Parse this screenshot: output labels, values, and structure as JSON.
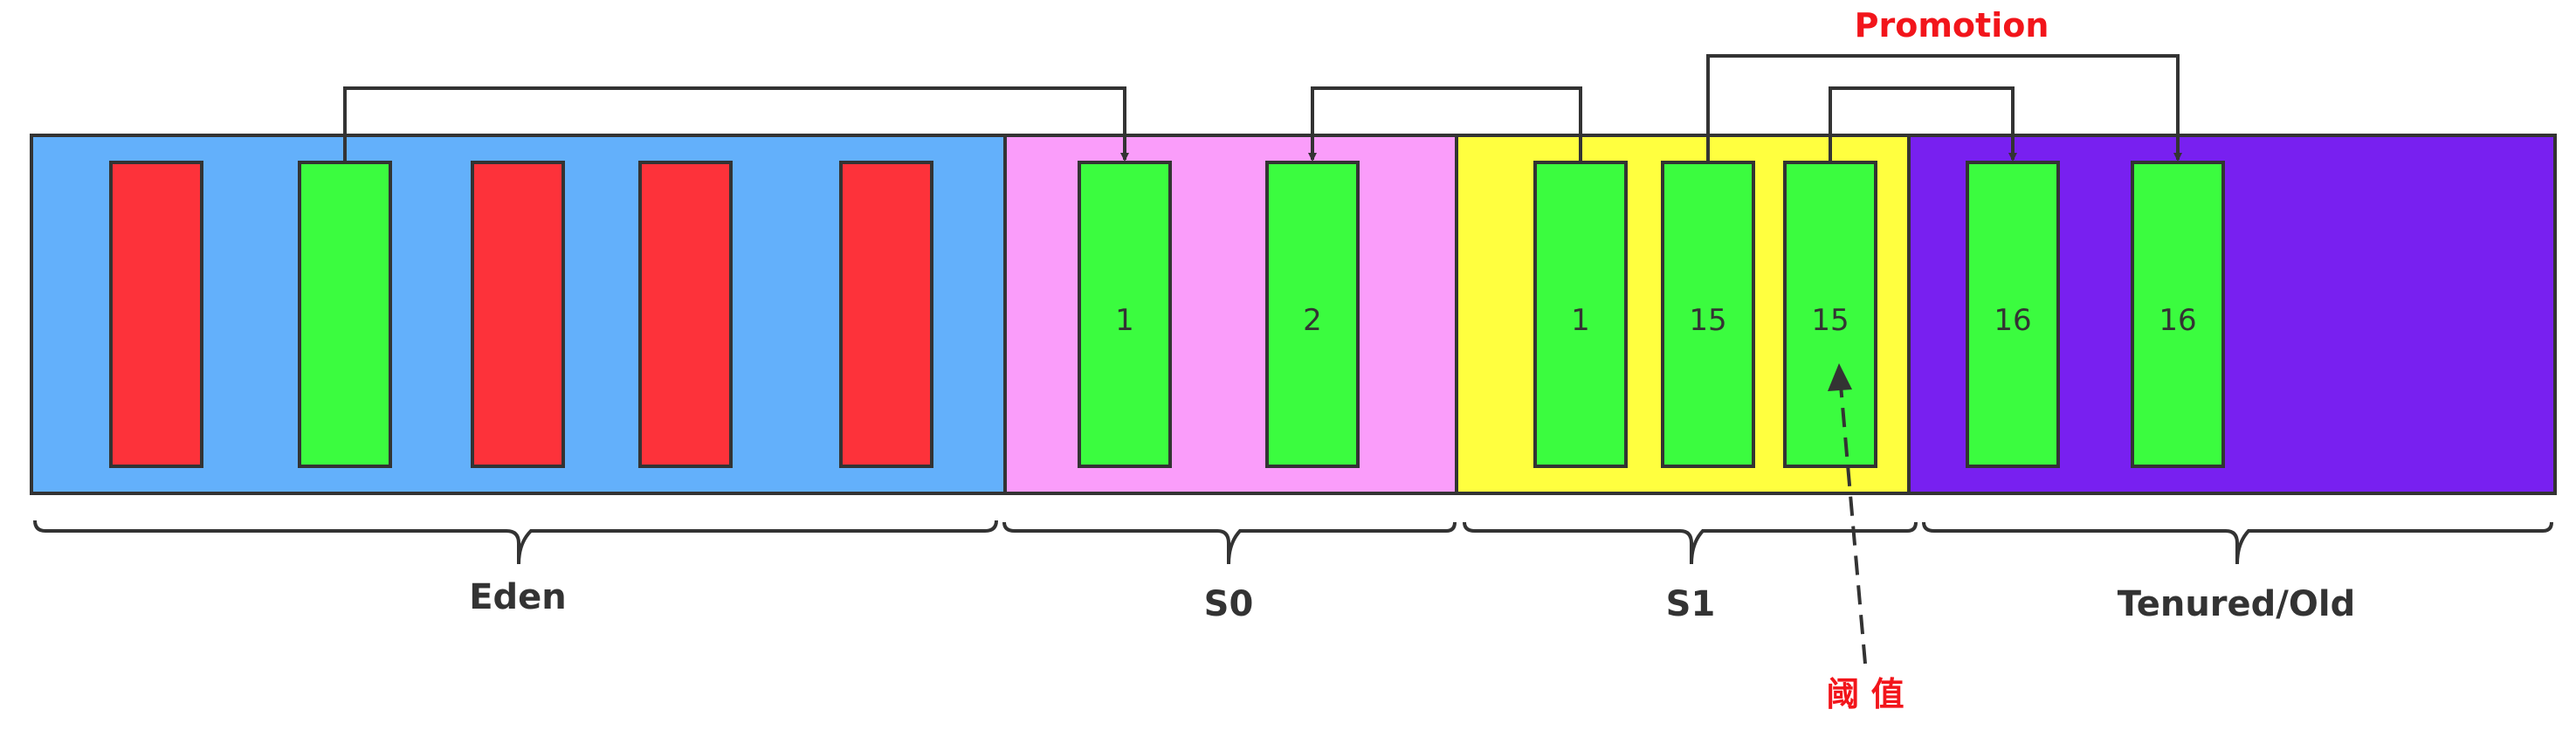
{
  "regions": [
    {
      "id": "eden",
      "label": "Eden",
      "color": "#63B0FB"
    },
    {
      "id": "s0",
      "label": "S0",
      "color": "#FA9DFA"
    },
    {
      "id": "s1",
      "label": "S1",
      "color": "#FFFF3F"
    },
    {
      "id": "tenured",
      "label": "Tenured/Old",
      "color": "#7820F0"
    }
  ],
  "objects": {
    "eden": [
      {
        "state": "garbage",
        "label": ""
      },
      {
        "state": "live",
        "label": ""
      },
      {
        "state": "garbage",
        "label": ""
      },
      {
        "state": "garbage",
        "label": ""
      },
      {
        "state": "garbage",
        "label": ""
      }
    ],
    "s0": [
      {
        "state": "live",
        "label": "1"
      },
      {
        "state": "live",
        "label": "2"
      }
    ],
    "s1": [
      {
        "state": "live",
        "label": "1"
      },
      {
        "state": "live",
        "label": "15"
      },
      {
        "state": "live",
        "label": "15"
      }
    ],
    "tenured": [
      {
        "state": "live",
        "label": "16"
      },
      {
        "state": "live",
        "label": "16"
      }
    ]
  },
  "colors": {
    "live": "#3BFC3F",
    "garbage": "#FD323A",
    "stroke": "#333333",
    "highlight": "#F2151B"
  },
  "promotion_label": "Promotion",
  "threshold_label": "阈 值"
}
